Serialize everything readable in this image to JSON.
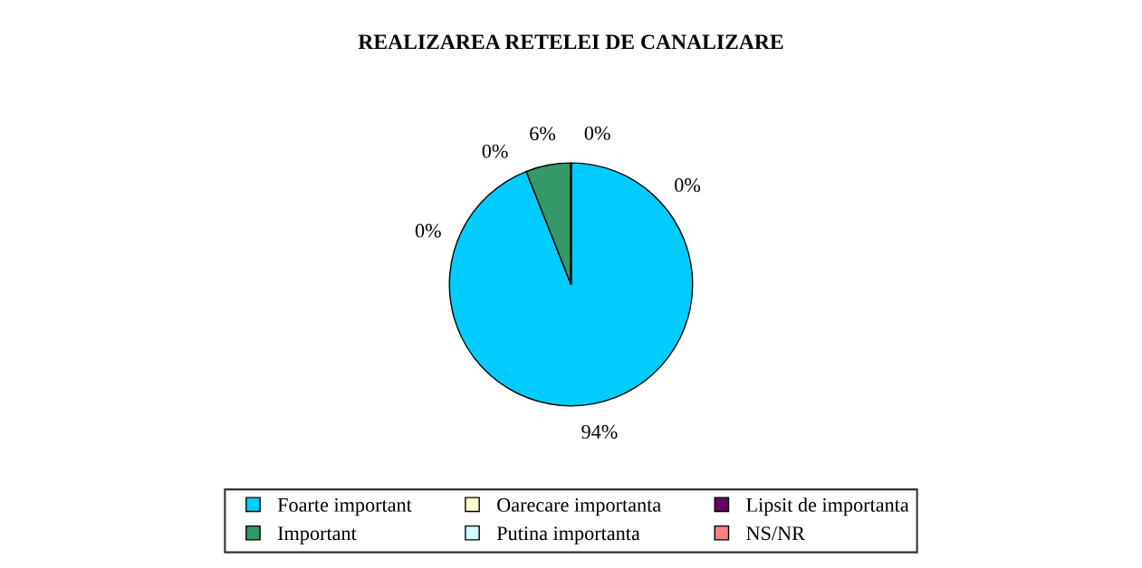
{
  "chart_data": {
    "type": "pie",
    "title": "REALIZAREA RETELEI DE CANALIZARE",
    "categories": [
      "Foarte important",
      "Important",
      "Oarecare importanta",
      "Putina importanta",
      "Lipsit de importanta",
      "NS/NR"
    ],
    "values": [
      94,
      6,
      0,
      0,
      0,
      0
    ],
    "colors": [
      "#00ccff",
      "#339966",
      "#ffffcc",
      "#ccffff",
      "#660066",
      "#ff8080"
    ],
    "value_labels": [
      "94%",
      "6%",
      "0%",
      "0%",
      "0%",
      "0%"
    ],
    "legend": "bottom"
  }
}
